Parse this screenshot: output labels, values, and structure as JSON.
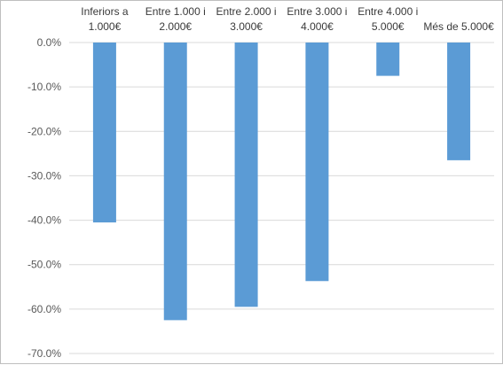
{
  "chart_data": {
    "type": "bar",
    "categories": [
      [
        "Inferiors a",
        "1.000€"
      ],
      [
        "Entre 1.000 i",
        "2.000€"
      ],
      [
        "Entre 2.000 i",
        "3.000€"
      ],
      [
        "Entre 3.000 i",
        "4.000€"
      ],
      [
        "Entre 4.000 i",
        "5.000€"
      ],
      [
        "Més de 5.000€"
      ]
    ],
    "values": [
      -40.5,
      -62.5,
      -59.5,
      -53.7,
      -7.5,
      -26.5
    ],
    "ylim": [
      -70,
      0
    ],
    "ytick_step": 10,
    "ytick_labels": [
      "0.0%",
      "-10.0%",
      "-20.0%",
      "-30.0%",
      "-40.0%",
      "-50.0%",
      "-60.0%",
      "-70.0%"
    ],
    "bar_color": "#5b9bd5",
    "grid": true,
    "grid_color": "#d9d9d9",
    "category_labels_position": "top"
  }
}
